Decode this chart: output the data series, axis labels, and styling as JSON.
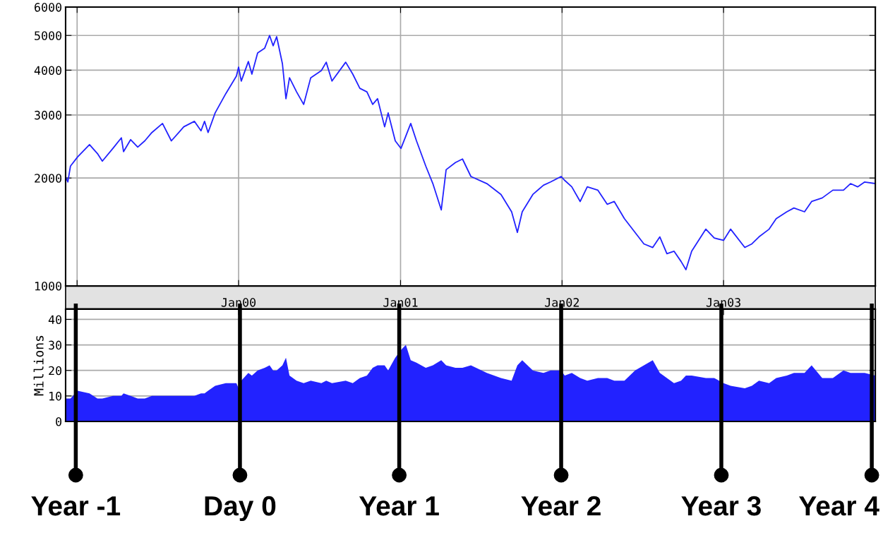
{
  "chart_data": [
    {
      "type": "line",
      "log": true,
      "grid": true,
      "line_style": "solid",
      "x": [
        "1998-12-06",
        "1998-12-11",
        "1998-12-17",
        "1999-01-02",
        "1999-01-29",
        "1999-02-16",
        "1999-02-27",
        "1999-03-23",
        "1999-04-11",
        "1999-04-16",
        "1999-05-02",
        "1999-05-18",
        "1999-06-03",
        "1999-06-19",
        "1999-07-13",
        "1999-08-02",
        "1999-08-30",
        "1999-09-23",
        "1999-10-08",
        "1999-10-16",
        "1999-10-24",
        "1999-11-09",
        "1999-12-03",
        "1999-12-27",
        "2000-01-01",
        "2000-01-07",
        "2000-01-23",
        "2000-01-31",
        "2000-02-13",
        "2000-02-29",
        "2000-03-11",
        "2000-03-19",
        "2000-03-27",
        "2000-04-09",
        "2000-04-17",
        "2000-04-25",
        "2000-05-11",
        "2000-05-27",
        "2000-06-12",
        "2000-07-06",
        "2000-07-17",
        "2000-07-30",
        "2000-08-30",
        "2000-09-15",
        "2000-10-01",
        "2000-10-17",
        "2000-10-30",
        "2000-11-10",
        "2000-11-26",
        "2000-12-04",
        "2000-12-20",
        "2001-01-02",
        "2001-01-13",
        "2001-01-24",
        "2001-02-06",
        "2001-02-27",
        "2001-03-15",
        "2001-04-03",
        "2001-04-14",
        "2001-05-05",
        "2001-05-21",
        "2001-06-09",
        "2001-07-15",
        "2001-08-16",
        "2001-09-09",
        "2001-09-22",
        "2001-10-03",
        "2001-10-27",
        "2001-11-20",
        "2001-12-06",
        "2001-12-30",
        "2002-01-07",
        "2002-01-23",
        "2002-02-11",
        "2002-02-27",
        "2002-03-23",
        "2002-04-13",
        "2002-04-29",
        "2002-05-22",
        "2002-06-15",
        "2002-07-05",
        "2002-07-25",
        "2002-08-10",
        "2002-08-26",
        "2002-09-11",
        "2002-09-27",
        "2002-10-08",
        "2002-10-21",
        "2002-11-22",
        "2002-12-11",
        "2003-01-01",
        "2003-01-17",
        "2003-02-18",
        "2003-03-06",
        "2003-03-22",
        "2003-04-14",
        "2003-04-30",
        "2003-05-24",
        "2003-06-09",
        "2003-07-03",
        "2003-07-19",
        "2003-08-12",
        "2003-09-05",
        "2003-09-29",
        "2003-10-15",
        "2003-10-31",
        "2003-11-16",
        "2003-12-10"
      ],
      "series": [
        {
          "color": "#2222ff",
          "values": [
            2020,
            1950,
            2160,
            2290,
            2480,
            2340,
            2230,
            2420,
            2590,
            2370,
            2560,
            2440,
            2540,
            2680,
            2840,
            2540,
            2780,
            2880,
            2710,
            2880,
            2680,
            3040,
            3440,
            3850,
            4080,
            3730,
            4230,
            3900,
            4470,
            4610,
            5000,
            4680,
            4960,
            4170,
            3330,
            3810,
            3480,
            3210,
            3810,
            3990,
            4210,
            3730,
            4210,
            3900,
            3560,
            3480,
            3210,
            3330,
            2780,
            3040,
            2540,
            2420,
            2620,
            2840,
            2540,
            2160,
            1930,
            1630,
            2110,
            2210,
            2260,
            2020,
            1930,
            1800,
            1610,
            1410,
            1610,
            1800,
            1910,
            1950,
            2020,
            1970,
            1890,
            1720,
            1890,
            1850,
            1690,
            1720,
            1540,
            1410,
            1310,
            1280,
            1370,
            1230,
            1250,
            1170,
            1110,
            1250,
            1440,
            1360,
            1340,
            1440,
            1280,
            1310,
            1370,
            1440,
            1540,
            1610,
            1650,
            1610,
            1720,
            1760,
            1850,
            1850,
            1930,
            1890,
            1950,
            1930
          ]
        }
      ],
      "xlim": [
        "1998-12-06",
        "2003-12-10"
      ],
      "xticks": [
        {
          "value": "1999-01-01",
          "label": null
        },
        {
          "value": "2000-01-01",
          "label": "Jan00"
        },
        {
          "value": "2001-01-01",
          "label": "Jan01"
        },
        {
          "value": "2002-01-01",
          "label": "Jan02"
        },
        {
          "value": "2003-01-01",
          "label": "Jan03"
        }
      ],
      "ylim": [
        1000,
        6000
      ],
      "yticks": [
        1000,
        2000,
        3000,
        4000,
        5000,
        6000
      ]
    },
    {
      "type": "area",
      "grid": "y",
      "ylabel": "Millions",
      "tick_labels": "y",
      "x": [
        "1998-12-06",
        "1998-12-11",
        "1998-12-17",
        "1999-01-02",
        "1999-01-29",
        "1999-02-16",
        "1999-02-27",
        "1999-03-23",
        "1999-04-11",
        "1999-04-16",
        "1999-05-02",
        "1999-05-18",
        "1999-06-03",
        "1999-06-19",
        "1999-07-13",
        "1999-08-02",
        "1999-08-30",
        "1999-09-23",
        "1999-10-08",
        "1999-10-16",
        "1999-10-24",
        "1999-11-09",
        "1999-12-03",
        "1999-12-27",
        "2000-01-01",
        "2000-01-07",
        "2000-01-23",
        "2000-01-31",
        "2000-02-13",
        "2000-02-29",
        "2000-03-11",
        "2000-03-19",
        "2000-03-27",
        "2000-04-09",
        "2000-04-17",
        "2000-04-25",
        "2000-05-11",
        "2000-05-27",
        "2000-06-12",
        "2000-07-06",
        "2000-07-17",
        "2000-07-30",
        "2000-08-30",
        "2000-09-15",
        "2000-10-01",
        "2000-10-17",
        "2000-10-30",
        "2000-11-10",
        "2000-11-26",
        "2000-12-04",
        "2000-12-20",
        "2001-01-02",
        "2001-01-13",
        "2001-01-24",
        "2001-02-06",
        "2001-02-27",
        "2001-03-15",
        "2001-04-03",
        "2001-04-14",
        "2001-05-05",
        "2001-05-21",
        "2001-06-09",
        "2001-07-15",
        "2001-08-16",
        "2001-09-09",
        "2001-09-22",
        "2001-10-03",
        "2001-10-27",
        "2001-11-20",
        "2001-12-06",
        "2001-12-30",
        "2002-01-07",
        "2002-01-23",
        "2002-02-11",
        "2002-02-27",
        "2002-03-23",
        "2002-04-13",
        "2002-04-29",
        "2002-05-22",
        "2002-06-15",
        "2002-07-05",
        "2002-07-25",
        "2002-08-10",
        "2002-08-26",
        "2002-09-11",
        "2002-09-27",
        "2002-10-08",
        "2002-10-21",
        "2002-11-22",
        "2002-12-11",
        "2003-01-01",
        "2003-01-17",
        "2003-02-18",
        "2003-03-06",
        "2003-03-22",
        "2003-04-14",
        "2003-04-30",
        "2003-05-24",
        "2003-06-09",
        "2003-07-03",
        "2003-07-19",
        "2003-08-12",
        "2003-09-05",
        "2003-09-29",
        "2003-10-15",
        "2003-10-31",
        "2003-11-16",
        "2003-12-10"
      ],
      "series": [
        {
          "color": "#2222ff",
          "values": [
            9,
            9,
            9,
            12,
            11,
            9,
            9,
            10,
            10,
            11,
            10,
            9,
            9,
            10,
            10,
            10,
            10,
            10,
            11,
            11,
            12,
            14,
            15,
            15,
            13,
            16,
            19,
            18,
            20,
            21,
            22,
            20,
            20,
            22,
            25,
            18,
            16,
            15,
            16,
            15,
            16,
            15,
            16,
            15,
            17,
            18,
            21,
            22,
            22,
            20,
            25,
            28,
            30,
            24,
            23,
            21,
            22,
            24,
            22,
            21,
            21,
            22,
            19,
            17,
            16,
            22,
            24,
            20,
            19,
            20,
            20,
            18,
            19,
            17,
            16,
            17,
            17,
            16,
            16,
            20,
            22,
            24,
            19,
            17,
            15,
            16,
            18,
            18,
            17,
            17,
            15,
            14,
            13,
            14,
            16,
            15,
            17,
            18,
            19,
            19,
            22,
            17,
            17,
            20,
            19,
            19,
            19,
            18
          ]
        }
      ],
      "xlim": [
        "1998-12-06",
        "2003-12-10"
      ],
      "ylim": [
        0,
        44
      ],
      "yticks": [
        0,
        10,
        20,
        30,
        40
      ],
      "ref_lines": [
        {
          "axis": "x",
          "value": "1998-12-29",
          "label": "Year -1",
          "color": "#000000"
        },
        {
          "axis": "x",
          "value": "2000-01-04",
          "label": "Day 0",
          "color": "#000000"
        },
        {
          "axis": "x",
          "value": "2000-12-29",
          "label": "Year 1",
          "color": "#000000"
        },
        {
          "axis": "x",
          "value": "2001-12-30",
          "label": "Year 2",
          "color": "#000000"
        },
        {
          "axis": "x",
          "value": "2002-12-27",
          "label": "Year 3",
          "color": "#000000"
        },
        {
          "axis": "x",
          "value": "2003-12-02",
          "label": "Year 4",
          "color": "#000000"
        }
      ]
    }
  ]
}
